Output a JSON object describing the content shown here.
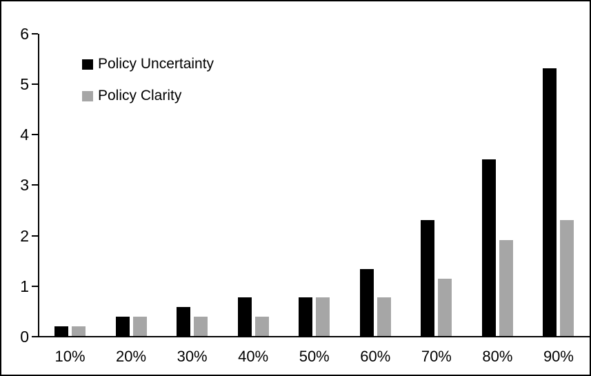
{
  "chart_data": {
    "type": "bar",
    "title": "",
    "xlabel": "",
    "ylabel": "",
    "categories": [
      "10%",
      "20%",
      "30%",
      "40%",
      "50%",
      "60%",
      "70%",
      "80%",
      "90%"
    ],
    "series": [
      {
        "name": "Policy Uncertainty",
        "color": "#000000",
        "values": [
          0.19,
          0.38,
          0.57,
          0.76,
          0.77,
          1.33,
          2.3,
          3.5,
          5.3
        ]
      },
      {
        "name": "Policy Clarity",
        "color": "#a6a6a6",
        "values": [
          0.19,
          0.38,
          0.38,
          0.38,
          0.76,
          0.76,
          1.13,
          1.9,
          2.3
        ]
      }
    ],
    "ylim": [
      0,
      6
    ],
    "ytick_step": 1,
    "yticks": [
      "0",
      "1",
      "2",
      "3",
      "4",
      "5",
      "6"
    ],
    "grid": false,
    "legend_position": "top-left-inside",
    "plot_background": "#ffffff",
    "frame_border_color": "#000000"
  }
}
